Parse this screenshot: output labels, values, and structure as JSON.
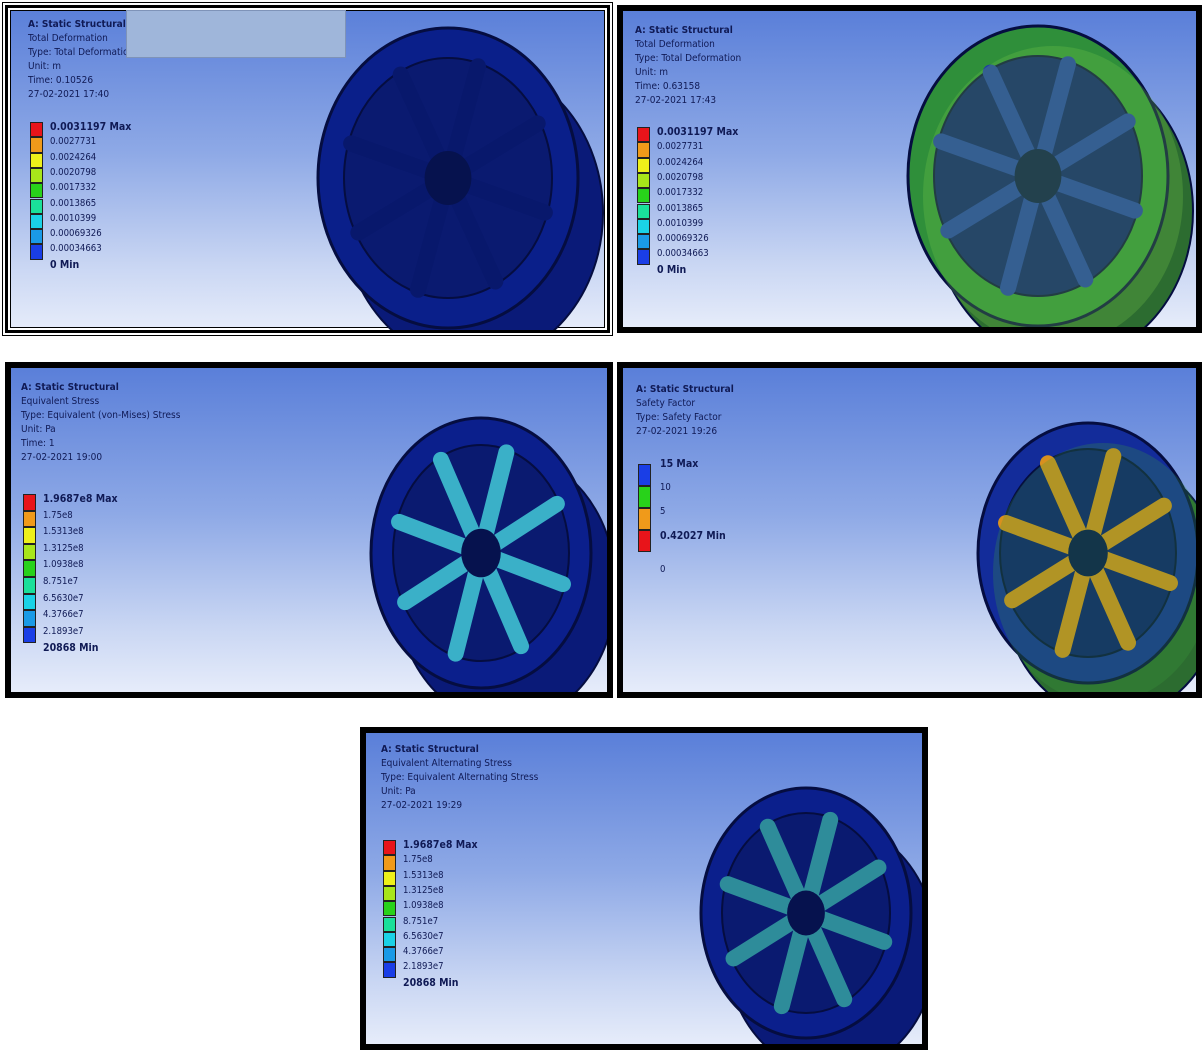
{
  "panels": [
    {
      "header": [
        "A: Static Structural",
        "Total Deformation",
        "Type: Total Deformation",
        "Unit: m",
        "Time: 0.10526",
        "27-02-2021 17:40"
      ],
      "legend": [
        "0.0031197 Max",
        "0.0027731",
        "0.0024264",
        "0.0020798",
        "0.0017332",
        "0.0013865",
        "0.0010399",
        "0.00069326",
        "0.00034663",
        "0 Min"
      ]
    },
    {
      "header": [
        "A: Static Structural",
        "Total Deformation",
        "Type: Total Deformation",
        "Unit: m",
        "Time: 0.63158",
        "27-02-2021 17:43"
      ],
      "legend": [
        "0.0031197 Max",
        "0.0027731",
        "0.0024264",
        "0.0020798",
        "0.0017332",
        "0.0013865",
        "0.0010399",
        "0.00069326",
        "0.00034663",
        "0 Min"
      ]
    },
    {
      "header": [
        "A: Static Structural",
        "Equivalent Stress",
        "Type: Equivalent (von-Mises) Stress",
        "Unit: Pa",
        "Time: 1",
        "27-02-2021 19:00"
      ],
      "legend": [
        "1.9687e8 Max",
        "1.75e8",
        "1.5313e8",
        "1.3125e8",
        "1.0938e8",
        "8.751e7",
        "6.5630e7",
        "4.3766e7",
        "2.1893e7",
        "20868 Min"
      ]
    },
    {
      "header": [
        "A: Static Structural",
        "Safety Factor",
        "Type: Safety Factor",
        "27-02-2021 19:26"
      ],
      "legend": [
        "15 Max",
        "10",
        "5",
        "0.42027 Min",
        "0"
      ]
    },
    {
      "header": [
        "A: Static Structural",
        "Equivalent Alternating Stress",
        "Type: Equivalent Alternating Stress",
        "Unit: Pa",
        "27-02-2021 19:29"
      ],
      "legend": [
        "1.9687e8 Max",
        "1.75e8",
        "1.5313e8",
        "1.3125e8",
        "1.0938e8",
        "8.751e7",
        "6.5630e7",
        "4.3766e7",
        "2.1893e7",
        "20868 Min"
      ]
    }
  ]
}
